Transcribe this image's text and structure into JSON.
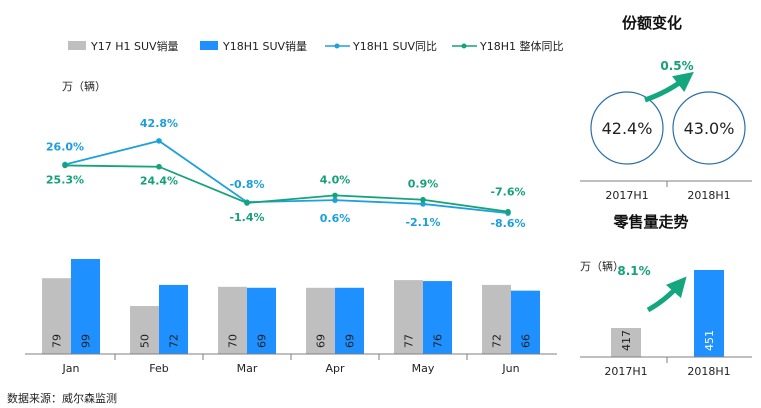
{
  "legend": {
    "y17_bar": "Y17 H1 SUV销量",
    "y18_bar": "Y18H1 SUV销量",
    "suv_yoy": "Y18H1 SUV同比",
    "total_yoy": "Y18H1 整体同比"
  },
  "unit_label": "万（辆）",
  "source_label": "数据来源：威尔森监测",
  "colors": {
    "gray": "#bfbfbf",
    "blue": "#1e90ff",
    "line_blue": "#1ea0dc",
    "line_green": "#17a37a",
    "label_blue": "#1b9fdc",
    "label_green": "#15a07a",
    "circle_stroke": "#2a6fa8",
    "arrow_green": "#14a77e"
  },
  "chart_data": [
    {
      "type": "bar",
      "categories": [
        "Jan",
        "Feb",
        "Mar",
        "Apr",
        "May",
        "Jun"
      ],
      "series": [
        {
          "name": "Y17 H1 SUV销量",
          "values": [
            79,
            50,
            70,
            69,
            77,
            72
          ]
        },
        {
          "name": "Y18H1 SUV销量",
          "values": [
            99,
            72,
            69,
            69,
            76,
            66
          ]
        }
      ],
      "ylabel": "万（辆）",
      "ylim": [
        0,
        110
      ]
    },
    {
      "type": "line",
      "categories": [
        "Jan",
        "Feb",
        "Mar",
        "Apr",
        "May",
        "Jun"
      ],
      "series": [
        {
          "name": "Y18H1 SUV同比",
          "values": [
            26.0,
            42.8,
            -0.8,
            0.6,
            -2.1,
            -8.6
          ],
          "labels": [
            "26.0%",
            "42.8%",
            "-0.8%",
            "0.6%",
            "-2.1%",
            "-8.6%"
          ]
        },
        {
          "name": "Y18H1 整体同比",
          "values": [
            25.3,
            24.4,
            -1.4,
            4.0,
            0.9,
            -7.6
          ],
          "labels": [
            "25.3%",
            "24.4%",
            "-1.4%",
            "4.0%",
            "0.9%",
            "-7.6%"
          ]
        }
      ],
      "ylim": [
        -12,
        48
      ]
    },
    {
      "type": "pie",
      "title": "份额变化",
      "categories": [
        "2017H1",
        "2018H1"
      ],
      "values": [
        42.4,
        43.0
      ],
      "labels": [
        "42.4%",
        "43.0%"
      ],
      "change_label": "0.5%"
    },
    {
      "type": "bar",
      "title": "零售量走势",
      "ylabel": "万（辆）",
      "categories": [
        "2017H1",
        "2018H1"
      ],
      "values": [
        417,
        451
      ],
      "ylim": [
        0,
        480
      ],
      "change_label": "8.1%"
    }
  ]
}
